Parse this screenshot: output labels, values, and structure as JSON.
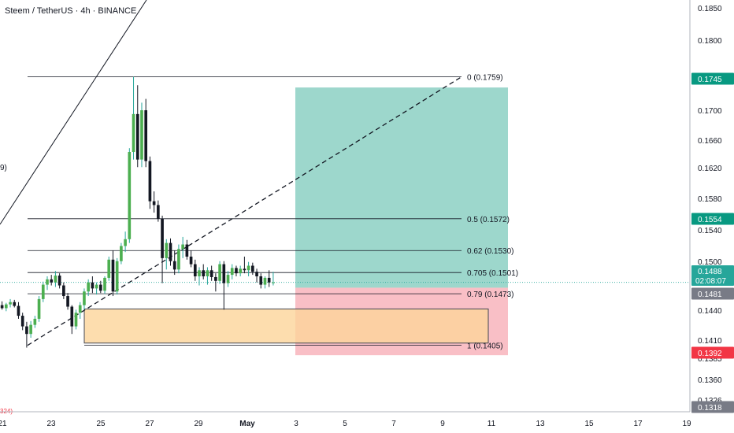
{
  "header": {
    "title": "Steem / TetherUS · 4h · BINANCE"
  },
  "chart_data": {
    "type": "candlestick",
    "symbol": "Steem / TetherUS",
    "interval": "4h",
    "exchange": "BINANCE",
    "price_axis_ticks": [
      "0.1850",
      "0.1800",
      "0.1745",
      "0.1700",
      "0.1660",
      "0.1620",
      "0.1580",
      "0.1554",
      "0.1540",
      "0.1500",
      "0.1488",
      "0.1481",
      "0.1440",
      "0.1410",
      "0.1392",
      "0.1360",
      "0.1318",
      "0.1326",
      "0.1385"
    ],
    "time_axis_ticks": [
      "21",
      "23",
      "25",
      "27",
      "29",
      "May",
      "3",
      "5",
      "7",
      "9",
      "11",
      "13",
      "15",
      "17",
      "19"
    ],
    "fibonacci": [
      {
        "label": "0 (0.1759)",
        "price": 0.1759
      },
      {
        "label": "0.5 (0.1572)",
        "price": 0.1572
      },
      {
        "label": "0.62 (0.1530)",
        "price": 0.153
      },
      {
        "label": "0.705 (0.1501)",
        "price": 0.1501
      },
      {
        "label": "0.79 (0.1473)",
        "price": 0.1473
      },
      {
        "label": "1 (0.1405)",
        "price": 0.1405
      }
    ],
    "badges": [
      {
        "text": "0.1745",
        "color": "#089981",
        "price": 0.1745
      },
      {
        "text": "0.1554",
        "color": "#089981",
        "price": 0.1554
      },
      {
        "text": "0.1488",
        "sub": "02:08:07",
        "color": "#26a69a",
        "price": 0.1488
      },
      {
        "text": "0.1481",
        "color": "#787b86",
        "price": 0.1481
      },
      {
        "text": "0.1392",
        "color": "#f23645",
        "price": 0.1392
      },
      {
        "text": "0.1318",
        "color": "#787b86",
        "price": 0.1318
      }
    ],
    "position": {
      "entry": 0.1481,
      "target": 0.1745,
      "stop": 0.1392,
      "target_color": "#4db6a3",
      "stop_color": "#f7a9b3"
    },
    "demand_zone": {
      "top": 0.1453,
      "bottom": 0.1408,
      "color": "#fdd49a"
    },
    "last_price": 0.1488,
    "countdown": "02:08:07",
    "partial_labels": {
      "left_mid": "9)",
      "left_bottom": "324)"
    },
    "candles": [
      {
        "t": 0,
        "o": 0.1458,
        "h": 0.1463,
        "l": 0.1452,
        "c": 0.1454
      },
      {
        "t": 1,
        "o": 0.1454,
        "h": 0.1461,
        "l": 0.145,
        "c": 0.1459
      },
      {
        "t": 2,
        "o": 0.1459,
        "h": 0.1466,
        "l": 0.1455,
        "c": 0.1462
      },
      {
        "t": 3,
        "o": 0.1462,
        "h": 0.1465,
        "l": 0.1455,
        "c": 0.1457
      },
      {
        "t": 4,
        "o": 0.1457,
        "h": 0.1462,
        "l": 0.144,
        "c": 0.1444
      },
      {
        "t": 5,
        "o": 0.1444,
        "h": 0.1448,
        "l": 0.1425,
        "c": 0.143
      },
      {
        "t": 6,
        "o": 0.143,
        "h": 0.1436,
        "l": 0.1402,
        "c": 0.142
      },
      {
        "t": 7,
        "o": 0.142,
        "h": 0.1437,
        "l": 0.1415,
        "c": 0.1432
      },
      {
        "t": 8,
        "o": 0.1432,
        "h": 0.1444,
        "l": 0.1428,
        "c": 0.144
      },
      {
        "t": 9,
        "o": 0.144,
        "h": 0.147,
        "l": 0.1436,
        "c": 0.1466
      },
      {
        "t": 10,
        "o": 0.1466,
        "h": 0.1489,
        "l": 0.1462,
        "c": 0.1485
      },
      {
        "t": 11,
        "o": 0.1485,
        "h": 0.1496,
        "l": 0.1478,
        "c": 0.1492
      },
      {
        "t": 12,
        "o": 0.1492,
        "h": 0.1498,
        "l": 0.1484,
        "c": 0.1488
      },
      {
        "t": 13,
        "o": 0.1488,
        "h": 0.1503,
        "l": 0.1482,
        "c": 0.1497
      },
      {
        "t": 14,
        "o": 0.1497,
        "h": 0.15,
        "l": 0.148,
        "c": 0.1484
      },
      {
        "t": 15,
        "o": 0.1484,
        "h": 0.1488,
        "l": 0.1466,
        "c": 0.147
      },
      {
        "t": 16,
        "o": 0.147,
        "h": 0.1474,
        "l": 0.1452,
        "c": 0.1456
      },
      {
        "t": 17,
        "o": 0.1456,
        "h": 0.1458,
        "l": 0.142,
        "c": 0.143
      },
      {
        "t": 18,
        "o": 0.143,
        "h": 0.1452,
        "l": 0.1426,
        "c": 0.1448
      },
      {
        "t": 19,
        "o": 0.1448,
        "h": 0.1462,
        "l": 0.144,
        "c": 0.1458
      },
      {
        "t": 20,
        "o": 0.1458,
        "h": 0.148,
        "l": 0.1452,
        "c": 0.1476
      },
      {
        "t": 21,
        "o": 0.1476,
        "h": 0.1492,
        "l": 0.147,
        "c": 0.1488
      },
      {
        "t": 22,
        "o": 0.1488,
        "h": 0.1496,
        "l": 0.1474,
        "c": 0.148
      },
      {
        "t": 23,
        "o": 0.148,
        "h": 0.1488,
        "l": 0.1472,
        "c": 0.1485
      },
      {
        "t": 24,
        "o": 0.1485,
        "h": 0.149,
        "l": 0.1474,
        "c": 0.1477
      },
      {
        "t": 25,
        "o": 0.1477,
        "h": 0.1496,
        "l": 0.1473,
        "c": 0.1494
      },
      {
        "t": 26,
        "o": 0.1494,
        "h": 0.1522,
        "l": 0.149,
        "c": 0.1518
      },
      {
        "t": 27,
        "o": 0.1518,
        "h": 0.153,
        "l": 0.147,
        "c": 0.1476
      },
      {
        "t": 28,
        "o": 0.1476,
        "h": 0.152,
        "l": 0.1472,
        "c": 0.1516
      },
      {
        "t": 29,
        "o": 0.1516,
        "h": 0.154,
        "l": 0.1512,
        "c": 0.1536
      },
      {
        "t": 30,
        "o": 0.1536,
        "h": 0.1555,
        "l": 0.1528,
        "c": 0.1545
      },
      {
        "t": 31,
        "o": 0.1545,
        "h": 0.1665,
        "l": 0.154,
        "c": 0.166
      },
      {
        "t": 32,
        "o": 0.166,
        "h": 0.1759,
        "l": 0.165,
        "c": 0.171
      },
      {
        "t": 33,
        "o": 0.171,
        "h": 0.1748,
        "l": 0.164,
        "c": 0.165
      },
      {
        "t": 34,
        "o": 0.165,
        "h": 0.1725,
        "l": 0.164,
        "c": 0.1715
      },
      {
        "t": 35,
        "o": 0.1715,
        "h": 0.173,
        "l": 0.164,
        "c": 0.1648
      },
      {
        "t": 36,
        "o": 0.1648,
        "h": 0.1654,
        "l": 0.1585,
        "c": 0.1595
      },
      {
        "t": 37,
        "o": 0.1595,
        "h": 0.1608,
        "l": 0.158,
        "c": 0.159
      },
      {
        "t": 38,
        "o": 0.159,
        "h": 0.1596,
        "l": 0.1568,
        "c": 0.1572
      },
      {
        "t": 39,
        "o": 0.1572,
        "h": 0.1576,
        "l": 0.1487,
        "c": 0.152
      },
      {
        "t": 40,
        "o": 0.152,
        "h": 0.1545,
        "l": 0.1505,
        "c": 0.154
      },
      {
        "t": 41,
        "o": 0.154,
        "h": 0.1546,
        "l": 0.151,
        "c": 0.1516
      },
      {
        "t": 42,
        "o": 0.1516,
        "h": 0.153,
        "l": 0.1498,
        "c": 0.1505
      },
      {
        "t": 43,
        "o": 0.1505,
        "h": 0.1538,
        "l": 0.15,
        "c": 0.1532
      },
      {
        "t": 44,
        "o": 0.1532,
        "h": 0.1548,
        "l": 0.152,
        "c": 0.1538
      },
      {
        "t": 45,
        "o": 0.1538,
        "h": 0.1544,
        "l": 0.1518,
        "c": 0.1522
      },
      {
        "t": 46,
        "o": 0.1522,
        "h": 0.153,
        "l": 0.1508,
        "c": 0.1512
      },
      {
        "t": 47,
        "o": 0.1512,
        "h": 0.1518,
        "l": 0.149,
        "c": 0.1496
      },
      {
        "t": 48,
        "o": 0.1496,
        "h": 0.1508,
        "l": 0.1484,
        "c": 0.1504
      },
      {
        "t": 49,
        "o": 0.1504,
        "h": 0.1512,
        "l": 0.1492,
        "c": 0.1496
      },
      {
        "t": 50,
        "o": 0.1496,
        "h": 0.1508,
        "l": 0.1485,
        "c": 0.1504
      },
      {
        "t": 51,
        "o": 0.1504,
        "h": 0.151,
        "l": 0.149,
        "c": 0.1495
      },
      {
        "t": 52,
        "o": 0.1495,
        "h": 0.15,
        "l": 0.1476,
        "c": 0.149
      },
      {
        "t": 53,
        "o": 0.149,
        "h": 0.1516,
        "l": 0.1486,
        "c": 0.1512
      },
      {
        "t": 54,
        "o": 0.1512,
        "h": 0.1516,
        "l": 0.1452,
        "c": 0.1487
      },
      {
        "t": 55,
        "o": 0.1487,
        "h": 0.1503,
        "l": 0.1482,
        "c": 0.1498
      },
      {
        "t": 56,
        "o": 0.1498,
        "h": 0.1512,
        "l": 0.1492,
        "c": 0.1507
      },
      {
        "t": 57,
        "o": 0.1507,
        "h": 0.151,
        "l": 0.1496,
        "c": 0.15
      },
      {
        "t": 58,
        "o": 0.15,
        "h": 0.151,
        "l": 0.1496,
        "c": 0.1506
      },
      {
        "t": 59,
        "o": 0.1506,
        "h": 0.1522,
        "l": 0.15,
        "c": 0.1504
      },
      {
        "t": 60,
        "o": 0.1504,
        "h": 0.1515,
        "l": 0.1496,
        "c": 0.151
      },
      {
        "t": 61,
        "o": 0.151,
        "h": 0.1514,
        "l": 0.1498,
        "c": 0.1502
      },
      {
        "t": 62,
        "o": 0.1502,
        "h": 0.1506,
        "l": 0.1488,
        "c": 0.1496
      },
      {
        "t": 63,
        "o": 0.1496,
        "h": 0.15,
        "l": 0.148,
        "c": 0.1485
      },
      {
        "t": 64,
        "o": 0.1485,
        "h": 0.1496,
        "l": 0.148,
        "c": 0.1494
      },
      {
        "t": 65,
        "o": 0.1494,
        "h": 0.1504,
        "l": 0.1482,
        "c": 0.1488
      },
      {
        "t": 66,
        "o": 0.1488,
        "h": 0.1502,
        "l": 0.1484,
        "c": 0.1488
      }
    ]
  }
}
